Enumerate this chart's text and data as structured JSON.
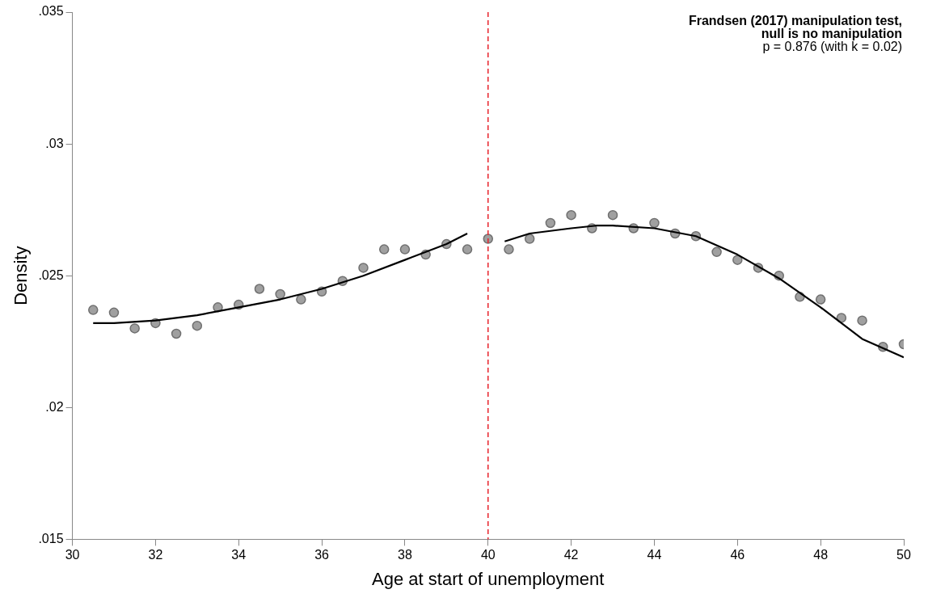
{
  "chart_data": {
    "type": "scatter",
    "xlabel": "Age at start of unemployment",
    "ylabel": "Density",
    "annotations": [
      "Frandsen (2017) manipulation test,",
      "null is no manipulation",
      "p = 0.876 (with k = 0.02)"
    ],
    "xlim": [
      30,
      50
    ],
    "xticks": [
      30,
      32,
      34,
      36,
      38,
      40,
      42,
      44,
      46,
      48,
      50
    ],
    "ylim": [
      0.015,
      0.035
    ],
    "yticks": [
      {
        "value": 0.015,
        "label": ".015"
      },
      {
        "value": 0.02,
        "label": ".02"
      },
      {
        "value": 0.025,
        "label": ".025"
      },
      {
        "value": 0.03,
        "label": ".03"
      },
      {
        "value": 0.035,
        "label": ".035"
      }
    ],
    "grid": false,
    "legend": false,
    "marker": "circle",
    "ref_lines": [
      {
        "axis": "x",
        "value": 40,
        "color": "#e8242c",
        "line_style": "dashed"
      }
    ],
    "series": [
      {
        "color": "#a0a0a0",
        "x": [
          30.5,
          31,
          31.5,
          32,
          32.5,
          33,
          33.5,
          34,
          34.5,
          35,
          35.5,
          36,
          36.5,
          37,
          37.5,
          38,
          38.5,
          39,
          39.5,
          40,
          40.5,
          41,
          41.5,
          42,
          42.5,
          43,
          43.5,
          44,
          44.5,
          45,
          45.5,
          46,
          46.5,
          47,
          47.5,
          48,
          48.5,
          49,
          49.5,
          50
        ],
        "values": [
          0.0237,
          0.0236,
          0.023,
          0.0232,
          0.0228,
          0.0231,
          0.0238,
          0.0239,
          0.0245,
          0.0243,
          0.0241,
          0.0244,
          0.0248,
          0.0253,
          0.026,
          0.026,
          0.0258,
          0.0262,
          0.026,
          0.0264,
          0.026,
          0.0264,
          0.027,
          0.0273,
          0.0268,
          0.0273,
          0.0268,
          0.027,
          0.0266,
          0.0265,
          0.0259,
          0.0256,
          0.0253,
          0.025,
          0.0242,
          0.0241,
          0.0234,
          0.0233,
          0.0223,
          0.0224
        ]
      },
      {
        "type": "line",
        "color": "#000000",
        "marker": "none",
        "line_style": "solid",
        "x": [
          30.5,
          31,
          32,
          33,
          34,
          35,
          36,
          37,
          38,
          39,
          39.5
        ],
        "values": [
          0.0232,
          0.0232,
          0.0233,
          0.0235,
          0.0238,
          0.0241,
          0.0245,
          0.025,
          0.0256,
          0.0262,
          0.0266
        ]
      },
      {
        "type": "line",
        "color": "#000000",
        "marker": "none",
        "line_style": "solid",
        "x": [
          40.4,
          41,
          42,
          42.6,
          43,
          44,
          45,
          46,
          47,
          48,
          49,
          50
        ],
        "values": [
          0.0263,
          0.0266,
          0.0268,
          0.0269,
          0.0269,
          0.0268,
          0.0265,
          0.0258,
          0.0249,
          0.0238,
          0.0226,
          0.0219
        ]
      }
    ]
  }
}
